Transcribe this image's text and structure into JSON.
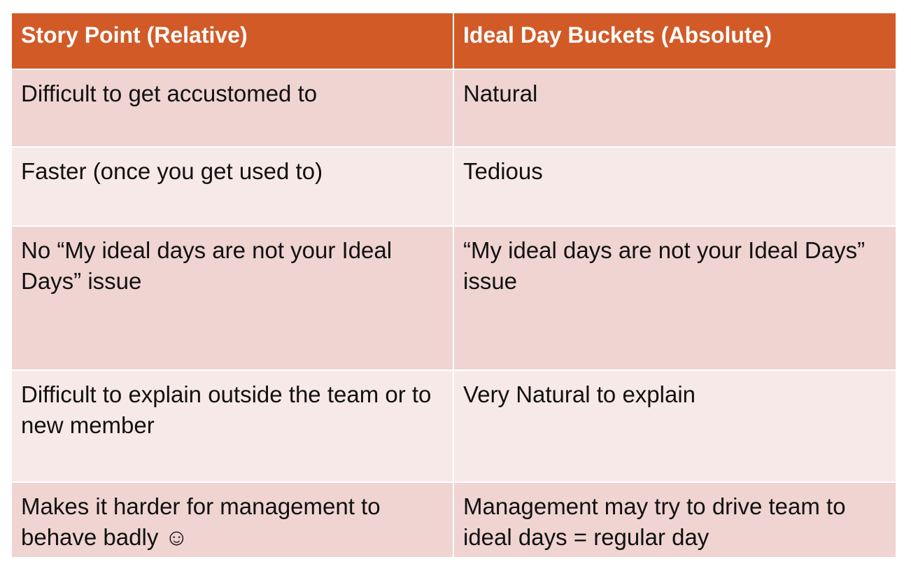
{
  "table": {
    "headers": [
      "Story Point (Relative)",
      "Ideal Day Buckets (Absolute)"
    ],
    "rows": [
      [
        "Difficult to get accustomed to",
        "Natural"
      ],
      [
        "Faster (once you get used to)",
        "Tedious"
      ],
      [
        "No “My ideal days are not your Ideal Days” issue",
        "“My ideal days are not your Ideal Days” issue"
      ],
      [
        "Difficult to explain outside the team or to new member",
        "Very Natural to explain"
      ],
      [
        "Makes it harder for management to behave badly ☺",
        "Management may try to drive team to ideal days = regular day"
      ]
    ]
  },
  "colors": {
    "header_bg": "#d25a27",
    "row_odd_bg": "#efd4d1",
    "row_even_bg": "#f7e9e8"
  }
}
